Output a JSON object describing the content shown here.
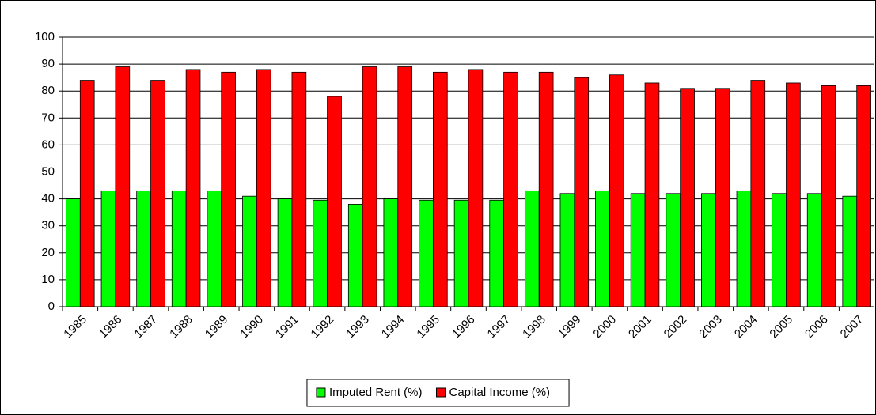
{
  "chart_data": {
    "type": "bar",
    "categories": [
      "1985",
      "1986",
      "1987",
      "1988",
      "1989",
      "1990",
      "1991",
      "1992",
      "1993",
      "1994",
      "1995",
      "1996",
      "1997",
      "1998",
      "1999",
      "2000",
      "2001",
      "2002",
      "2003",
      "2004",
      "2005",
      "2006",
      "2007"
    ],
    "series": [
      {
        "name": "Imputed Rent (%)",
        "color": "#00ff00",
        "values": [
          40,
          43,
          43,
          43,
          43,
          41,
          40,
          39.5,
          38,
          40,
          39.5,
          39.5,
          39.5,
          43,
          42,
          43,
          42,
          42,
          42,
          43,
          42,
          42,
          41
        ]
      },
      {
        "name": "Capital Income (%)",
        "color": "#ff0000",
        "values": [
          84,
          89,
          84,
          88,
          87,
          88,
          87,
          78,
          89,
          89,
          87,
          88,
          87,
          87,
          85,
          86,
          83,
          81,
          81,
          84,
          83,
          82,
          82
        ]
      }
    ],
    "ylim": [
      0,
      100
    ],
    "yticks": [
      0,
      10,
      20,
      30,
      40,
      50,
      60,
      70,
      80,
      90,
      100
    ],
    "grid": true,
    "legend": "bottom"
  }
}
